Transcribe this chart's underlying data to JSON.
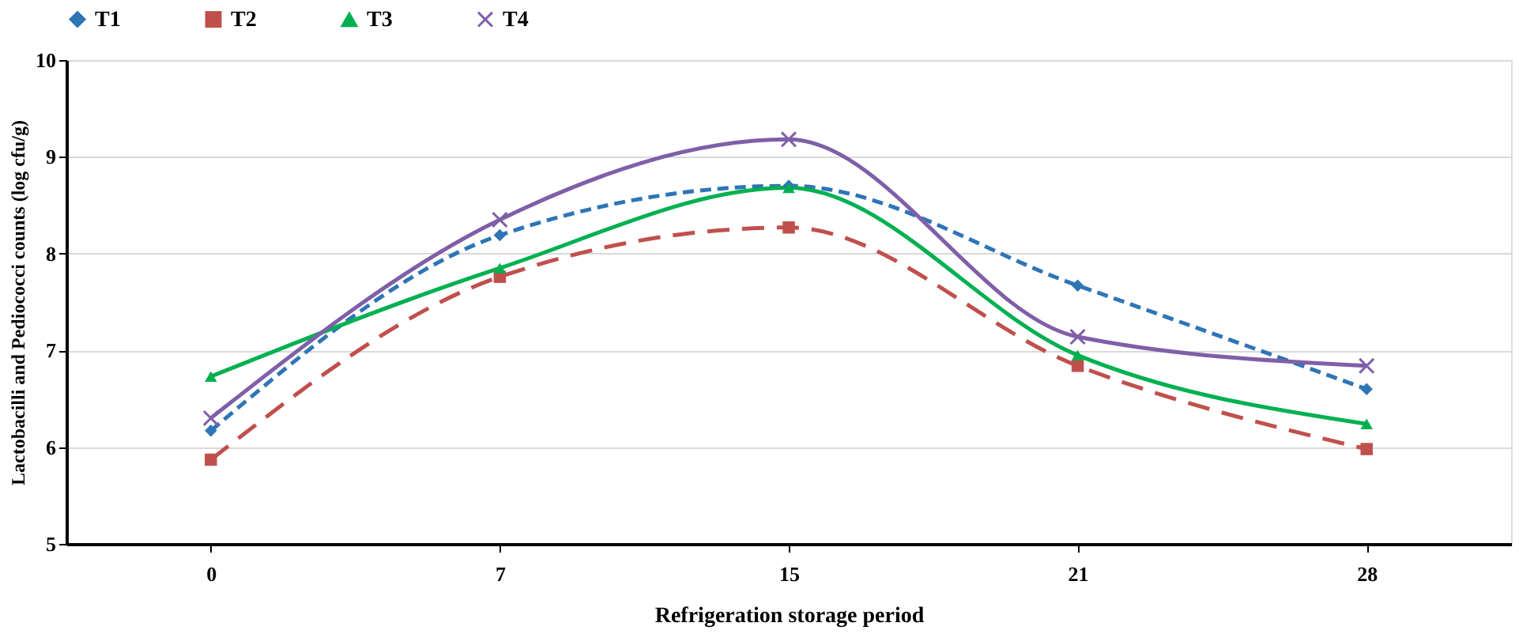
{
  "chart_data": {
    "type": "line",
    "xlabel": "Refrigeration storage period",
    "ylabel": "Lactobacilli and Pediococci counts (log cfu/g)",
    "categories": [
      "0",
      "7",
      "15",
      "21",
      "28"
    ],
    "series": [
      {
        "name": "T1",
        "color": "#2e75b6",
        "marker": "diamond",
        "line_style": "dashed",
        "values": [
          6.17,
          8.19,
          8.7,
          7.67,
          6.6
        ]
      },
      {
        "name": "T2",
        "color": "#c0504d",
        "marker": "square",
        "line_style": "dashed",
        "values": [
          5.87,
          7.76,
          8.27,
          6.84,
          5.98
        ]
      },
      {
        "name": "T3",
        "color": "#00b050",
        "marker": "triangle",
        "line_style": "solid",
        "values": [
          6.73,
          7.85,
          8.68,
          6.95,
          6.24
        ]
      },
      {
        "name": "T4",
        "color": "#7f5fa8",
        "marker": "cross",
        "line_style": "solid",
        "values": [
          6.3,
          8.35,
          9.18,
          7.14,
          6.84
        ]
      }
    ],
    "ylim": [
      5,
      10
    ],
    "yticks": [
      5,
      6,
      7,
      8,
      9,
      10
    ],
    "grid": "y",
    "legend": "top"
  }
}
